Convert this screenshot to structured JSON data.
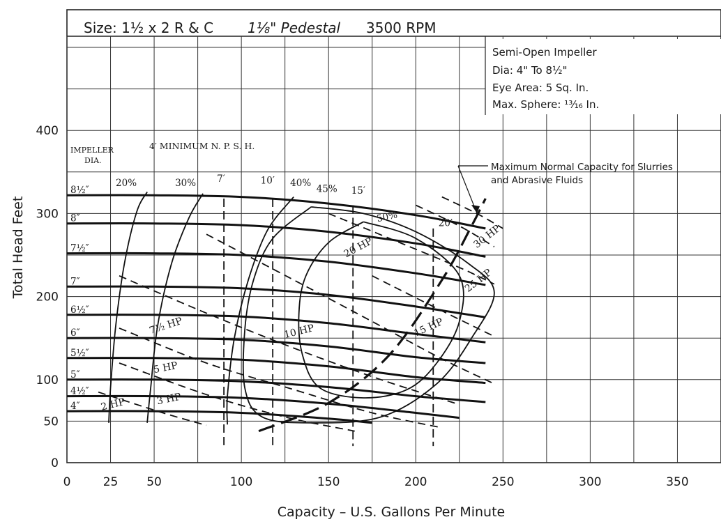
{
  "chart_data": {
    "type": "line",
    "header": {
      "size": "Size: 1½ x 2 R & C",
      "pedestal": "1⅛\" Pedestal",
      "rpm": "3500 RPM"
    },
    "info_box": [
      "Semi-Open Impeller",
      "Dia: 4\" To 8½\"",
      "Eye Area: 5 Sq. In.",
      "Max. Sphere: ¹³⁄₁₆ In."
    ],
    "xlabel": "Capacity – U.S. Gallons Per Minute",
    "ylabel": "Total Head Feet",
    "xlim": [
      0,
      375
    ],
    "ylim": [
      0,
      500
    ],
    "x_ticks": [
      0,
      25,
      50,
      100,
      150,
      200,
      250,
      300,
      350
    ],
    "y_ticks": [
      0,
      50,
      100,
      200,
      300,
      400
    ],
    "grid": true,
    "impeller_header": "IMPELLER",
    "impeller_header_2": "DIA.",
    "npsh_header": "4′ MINIMUM  N. P. S. H.",
    "slurry_note": [
      "Maximum Normal Capacity for Slurries",
      "and Abrasive Fluids"
    ],
    "impeller_curves": [
      {
        "label": "8½″",
        "points": [
          [
            0,
            322
          ],
          [
            50,
            322
          ],
          [
            100,
            320
          ],
          [
            150,
            312
          ],
          [
            200,
            298
          ],
          [
            240,
            282
          ]
        ]
      },
      {
        "label": "8″",
        "points": [
          [
            0,
            288
          ],
          [
            50,
            288
          ],
          [
            100,
            286
          ],
          [
            150,
            278
          ],
          [
            200,
            264
          ],
          [
            240,
            248
          ]
        ]
      },
      {
        "label": "7½″",
        "points": [
          [
            0,
            252
          ],
          [
            50,
            252
          ],
          [
            100,
            250
          ],
          [
            150,
            242
          ],
          [
            200,
            228
          ],
          [
            240,
            214
          ]
        ]
      },
      {
        "label": "7″",
        "points": [
          [
            0,
            212
          ],
          [
            50,
            212
          ],
          [
            100,
            210
          ],
          [
            150,
            202
          ],
          [
            200,
            188
          ],
          [
            240,
            175
          ]
        ]
      },
      {
        "label": "6½″",
        "points": [
          [
            0,
            178
          ],
          [
            50,
            178
          ],
          [
            100,
            176
          ],
          [
            150,
            168
          ],
          [
            200,
            155
          ],
          [
            240,
            145
          ]
        ]
      },
      {
        "label": "6″",
        "points": [
          [
            0,
            150
          ],
          [
            50,
            150
          ],
          [
            100,
            148
          ],
          [
            150,
            140
          ],
          [
            200,
            127
          ],
          [
            240,
            120
          ]
        ]
      },
      {
        "label": "5½″",
        "points": [
          [
            0,
            126
          ],
          [
            50,
            126
          ],
          [
            100,
            124
          ],
          [
            150,
            116
          ],
          [
            200,
            103
          ],
          [
            240,
            96
          ]
        ]
      },
      {
        "label": "5″",
        "points": [
          [
            0,
            100
          ],
          [
            50,
            100
          ],
          [
            100,
            98
          ],
          [
            150,
            91
          ],
          [
            200,
            80
          ],
          [
            240,
            73
          ]
        ]
      },
      {
        "label": "4½″",
        "points": [
          [
            0,
            80
          ],
          [
            50,
            80
          ],
          [
            100,
            78
          ],
          [
            150,
            71
          ],
          [
            200,
            60
          ],
          [
            225,
            54
          ]
        ]
      },
      {
        "label": "4″",
        "points": [
          [
            0,
            62
          ],
          [
            50,
            62
          ],
          [
            100,
            60
          ],
          [
            150,
            53
          ],
          [
            175,
            48
          ]
        ]
      }
    ],
    "efficiency_curves": [
      {
        "label": "20%",
        "points": [
          [
            24,
            48
          ],
          [
            25,
            90
          ],
          [
            28,
            165
          ],
          [
            33,
            240
          ],
          [
            40,
            302
          ],
          [
            46,
            326
          ]
        ]
      },
      {
        "label": "30%",
        "points": [
          [
            46,
            48
          ],
          [
            48,
            90
          ],
          [
            52,
            165
          ],
          [
            60,
            240
          ],
          [
            70,
            295
          ],
          [
            78,
            324
          ]
        ]
      },
      {
        "label": "40%",
        "points": [
          [
            92,
            46
          ],
          [
            92,
            80
          ],
          [
            96,
            150
          ],
          [
            104,
            220
          ],
          [
            115,
            280
          ],
          [
            130,
            320
          ]
        ]
      },
      {
        "label": "45%",
        "points": [
          [
            140,
            308
          ],
          [
            170,
            300
          ],
          [
            200,
            278
          ],
          [
            230,
            240
          ],
          [
            245,
            205
          ],
          [
            232,
            150
          ],
          [
            212,
            95
          ],
          [
            180,
            55
          ],
          [
            140,
            48
          ],
          [
            112,
            55
          ],
          [
            102,
            90
          ],
          [
            102,
            160
          ],
          [
            107,
            220
          ],
          [
            118,
            270
          ],
          [
            140,
            308
          ]
        ]
      },
      {
        "label": "50%",
        "points": [
          [
            170,
            290
          ],
          [
            200,
            270
          ],
          [
            225,
            225
          ],
          [
            225,
            170
          ],
          [
            212,
            120
          ],
          [
            195,
            88
          ],
          [
            170,
            78
          ],
          [
            145,
            90
          ],
          [
            135,
            130
          ],
          [
            133,
            180
          ],
          [
            137,
            225
          ],
          [
            150,
            265
          ],
          [
            170,
            290
          ]
        ]
      }
    ],
    "npsh_curves": [
      {
        "label": "7′",
        "x": 90,
        "ytop": 318
      },
      {
        "label": "10′",
        "x": 118,
        "ytop": 318
      },
      {
        "label": "15′",
        "x": 164,
        "ytop": 310
      },
      {
        "label": "20′",
        "x": 210,
        "ytop": 282
      }
    ],
    "horsepower_curves": [
      {
        "label": "2 HP",
        "points": [
          [
            18,
            85
          ],
          [
            55,
            60
          ],
          [
            80,
            45
          ]
        ]
      },
      {
        "label": "3 HP",
        "points": [
          [
            30,
            120
          ],
          [
            80,
            82
          ],
          [
            125,
            55
          ],
          [
            165,
            38
          ]
        ]
      },
      {
        "label": "5 HP",
        "points": [
          [
            30,
            162
          ],
          [
            80,
            120
          ],
          [
            130,
            88
          ],
          [
            175,
            60
          ],
          [
            215,
            42
          ]
        ]
      },
      {
        "label": "7½ HP",
        "points": [
          [
            30,
            225
          ],
          [
            80,
            180
          ],
          [
            130,
            138
          ],
          [
            180,
            100
          ],
          [
            225,
            70
          ]
        ]
      },
      {
        "label": "10 HP",
        "points": [
          [
            80,
            275
          ],
          [
            130,
            220
          ],
          [
            175,
            170
          ],
          [
            215,
            125
          ],
          [
            245,
            95
          ]
        ]
      },
      {
        "label": "15 HP",
        "points": [
          [
            175,
            225
          ],
          [
            210,
            188
          ],
          [
            245,
            152
          ]
        ]
      },
      {
        "label": "20 HP",
        "points": [
          [
            150,
            300
          ],
          [
            185,
            270
          ],
          [
            225,
            235
          ],
          [
            245,
            215
          ]
        ]
      },
      {
        "label": "25 HP",
        "points": [
          [
            200,
            310
          ],
          [
            225,
            285
          ],
          [
            245,
            260
          ]
        ]
      },
      {
        "label": "30 HP",
        "points": [
          [
            215,
            320
          ],
          [
            235,
            300
          ],
          [
            250,
            282
          ]
        ]
      }
    ],
    "slurry_limit": {
      "points": [
        [
          110,
          38
        ],
        [
          150,
          72
        ],
        [
          185,
          130
        ],
        [
          215,
          220
        ],
        [
          232,
          285
        ],
        [
          240,
          318
        ]
      ]
    }
  }
}
